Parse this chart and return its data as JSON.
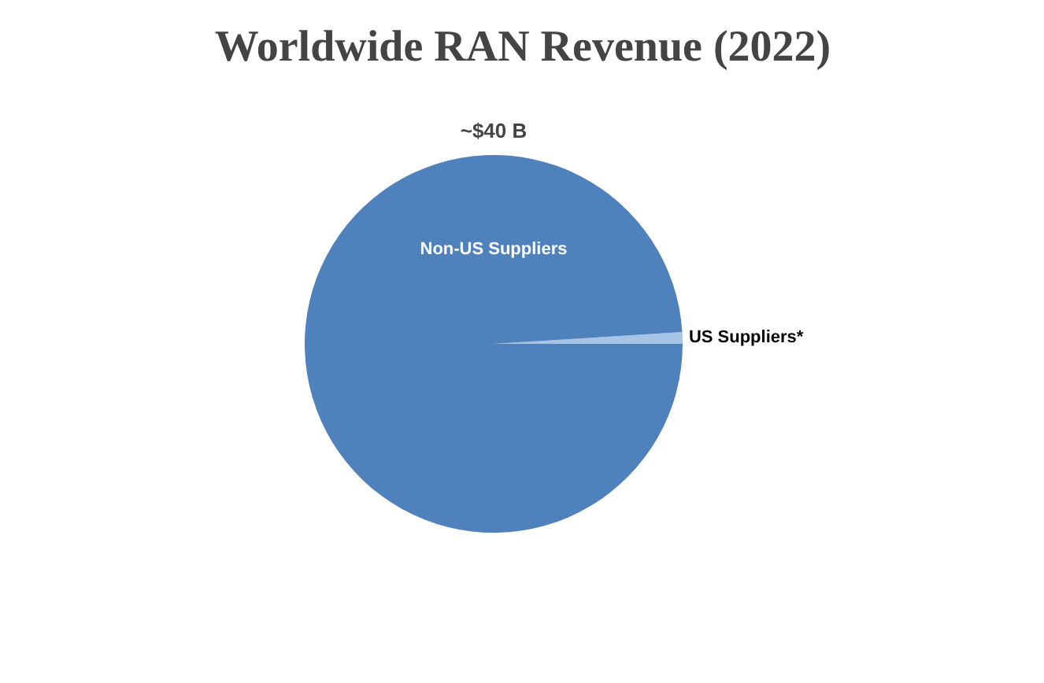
{
  "chart_data": {
    "type": "pie",
    "title": "Worldwide RAN Revenue (2022)",
    "subtitle": "~$40 B",
    "categories": [
      "Non-US Suppliers",
      "US Suppliers*"
    ],
    "values": [
      99,
      1
    ],
    "colors": [
      "#4f81bd",
      "#a6c4e6"
    ]
  }
}
